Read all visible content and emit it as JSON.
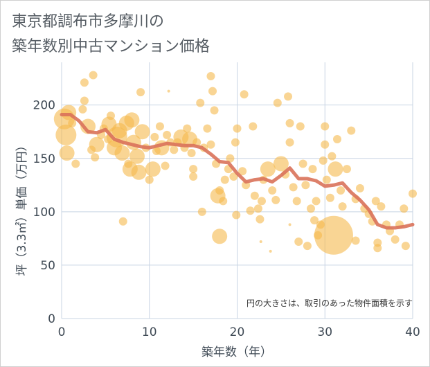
{
  "chart_data": {
    "type": "scatter",
    "title": "東京都調布市多摩川の\n築年数別中古マンション価格",
    "xlabel": "築年数（年）",
    "ylabel": "坪（3.3㎡）単価（万円）",
    "xlim": [
      0,
      40
    ],
    "ylim": [
      0,
      240
    ],
    "xticks": [
      0,
      10,
      20,
      30,
      40
    ],
    "yticks": [
      0,
      50,
      100,
      150,
      200
    ],
    "grid": true,
    "annotation": "円の大きさは、取引のあった物件面積を示す",
    "colors": {
      "bubble": "#f5b94d",
      "line": "#d9725a",
      "grid": "#c8d4e3"
    },
    "bubbles": [
      {
        "x": 0.3,
        "y": 187,
        "s": 3
      },
      {
        "x": 0.5,
        "y": 172,
        "s": 3
      },
      {
        "x": 0.6,
        "y": 155,
        "s": 2
      },
      {
        "x": 0.8,
        "y": 193,
        "s": 2
      },
      {
        "x": 1.2,
        "y": 183,
        "s": 1
      },
      {
        "x": 1.6,
        "y": 145,
        "s": 1
      },
      {
        "x": 2.4,
        "y": 196,
        "s": 1
      },
      {
        "x": 2.6,
        "y": 204,
        "s": 1
      },
      {
        "x": 2.6,
        "y": 221,
        "s": 1
      },
      {
        "x": 3.0,
        "y": 180,
        "s": 2
      },
      {
        "x": 3.4,
        "y": 158,
        "s": 1
      },
      {
        "x": 3.6,
        "y": 228,
        "s": 1
      },
      {
        "x": 3.8,
        "y": 151,
        "s": 1
      },
      {
        "x": 4.0,
        "y": 163,
        "s": 2
      },
      {
        "x": 4.5,
        "y": 172,
        "s": 1
      },
      {
        "x": 4.8,
        "y": 178,
        "s": 1
      },
      {
        "x": 5.3,
        "y": 168,
        "s": 1
      },
      {
        "x": 5.4,
        "y": 182,
        "s": 2
      },
      {
        "x": 5.6,
        "y": 190,
        "s": 1
      },
      {
        "x": 6.0,
        "y": 160,
        "s": 2
      },
      {
        "x": 6.3,
        "y": 170,
        "s": 3
      },
      {
        "x": 6.6,
        "y": 176,
        "s": 2
      },
      {
        "x": 6.9,
        "y": 155,
        "s": 2
      },
      {
        "x": 7.0,
        "y": 91,
        "s": 1
      },
      {
        "x": 7.4,
        "y": 183,
        "s": 2
      },
      {
        "x": 7.6,
        "y": 145,
        "s": 1
      },
      {
        "x": 7.8,
        "y": 140,
        "s": 2
      },
      {
        "x": 8.0,
        "y": 186,
        "s": 2
      },
      {
        "x": 8.2,
        "y": 165,
        "s": 2
      },
      {
        "x": 8.6,
        "y": 152,
        "s": 2
      },
      {
        "x": 8.8,
        "y": 137,
        "s": 2
      },
      {
        "x": 9.0,
        "y": 212,
        "s": 1
      },
      {
        "x": 9.2,
        "y": 175,
        "s": 2
      },
      {
        "x": 9.6,
        "y": 160,
        "s": 1
      },
      {
        "x": 10.0,
        "y": 130,
        "s": 1
      },
      {
        "x": 10.4,
        "y": 140,
        "s": 2
      },
      {
        "x": 10.6,
        "y": 170,
        "s": 1
      },
      {
        "x": 10.8,
        "y": 157,
        "s": 1
      },
      {
        "x": 11.2,
        "y": 180,
        "s": 1
      },
      {
        "x": 11.4,
        "y": 160,
        "s": 2
      },
      {
        "x": 11.8,
        "y": 143,
        "s": 1
      },
      {
        "x": 12.0,
        "y": 172,
        "s": 1
      },
      {
        "x": 12.2,
        "y": 213,
        "s": 0
      },
      {
        "x": 12.4,
        "y": 165,
        "s": 1
      },
      {
        "x": 12.8,
        "y": 158,
        "s": 1
      },
      {
        "x": 13.2,
        "y": 165,
        "s": 1
      },
      {
        "x": 13.6,
        "y": 170,
        "s": 2
      },
      {
        "x": 14.0,
        "y": 160,
        "s": 1
      },
      {
        "x": 14.3,
        "y": 178,
        "s": 1
      },
      {
        "x": 14.6,
        "y": 168,
        "s": 2
      },
      {
        "x": 14.8,
        "y": 155,
        "s": 1
      },
      {
        "x": 15.0,
        "y": 140,
        "s": 1
      },
      {
        "x": 15.0,
        "y": 133,
        "s": 1
      },
      {
        "x": 15.4,
        "y": 165,
        "s": 1
      },
      {
        "x": 15.8,
        "y": 202,
        "s": 1
      },
      {
        "x": 16.0,
        "y": 100,
        "s": 1
      },
      {
        "x": 16.2,
        "y": 160,
        "s": 1
      },
      {
        "x": 16.6,
        "y": 178,
        "s": 1
      },
      {
        "x": 17.0,
        "y": 163,
        "s": 1
      },
      {
        "x": 17.0,
        "y": 227,
        "s": 1
      },
      {
        "x": 17.2,
        "y": 213,
        "s": 1
      },
      {
        "x": 17.4,
        "y": 195,
        "s": 1
      },
      {
        "x": 17.6,
        "y": 145,
        "s": 1
      },
      {
        "x": 17.8,
        "y": 115,
        "s": 2
      },
      {
        "x": 18.0,
        "y": 120,
        "s": 1
      },
      {
        "x": 18.0,
        "y": 77,
        "s": 2
      },
      {
        "x": 18.4,
        "y": 110,
        "s": 1
      },
      {
        "x": 18.6,
        "y": 130,
        "s": 1
      },
      {
        "x": 19.0,
        "y": 140,
        "s": 1
      },
      {
        "x": 19.2,
        "y": 150,
        "s": 1
      },
      {
        "x": 19.6,
        "y": 133,
        "s": 1
      },
      {
        "x": 19.8,
        "y": 165,
        "s": 1
      },
      {
        "x": 19.9,
        "y": 97,
        "s": 1
      },
      {
        "x": 20.0,
        "y": 178,
        "s": 1
      },
      {
        "x": 20.6,
        "y": 138,
        "s": 1
      },
      {
        "x": 20.8,
        "y": 210,
        "s": 1
      },
      {
        "x": 21.0,
        "y": 125,
        "s": 1
      },
      {
        "x": 21.5,
        "y": 101,
        "s": 1
      },
      {
        "x": 21.8,
        "y": 180,
        "s": 1
      },
      {
        "x": 22.0,
        "y": 115,
        "s": 1
      },
      {
        "x": 22.4,
        "y": 103,
        "s": 1
      },
      {
        "x": 22.6,
        "y": 93,
        "s": 1
      },
      {
        "x": 22.7,
        "y": 72,
        "s": 0
      },
      {
        "x": 22.8,
        "y": 110,
        "s": 1
      },
      {
        "x": 23.0,
        "y": 130,
        "s": 1
      },
      {
        "x": 23.5,
        "y": 140,
        "s": 2
      },
      {
        "x": 23.8,
        "y": 63,
        "s": 0
      },
      {
        "x": 24.0,
        "y": 120,
        "s": 1
      },
      {
        "x": 24.4,
        "y": 111,
        "s": 1
      },
      {
        "x": 24.6,
        "y": 202,
        "s": 1
      },
      {
        "x": 25.0,
        "y": 145,
        "s": 2
      },
      {
        "x": 25.5,
        "y": 135,
        "s": 1
      },
      {
        "x": 25.8,
        "y": 208,
        "s": 1
      },
      {
        "x": 26.0,
        "y": 183,
        "s": 1
      },
      {
        "x": 26.0,
        "y": 165,
        "s": 1
      },
      {
        "x": 26.0,
        "y": 88,
        "s": 0
      },
      {
        "x": 26.4,
        "y": 123,
        "s": 1
      },
      {
        "x": 26.8,
        "y": 110,
        "s": 1
      },
      {
        "x": 27.0,
        "y": 72,
        "s": 1
      },
      {
        "x": 27.2,
        "y": 180,
        "s": 1
      },
      {
        "x": 27.5,
        "y": 145,
        "s": 1
      },
      {
        "x": 27.8,
        "y": 125,
        "s": 1
      },
      {
        "x": 28.0,
        "y": 68,
        "s": 1
      },
      {
        "x": 28.4,
        "y": 103,
        "s": 1
      },
      {
        "x": 28.6,
        "y": 140,
        "s": 1
      },
      {
        "x": 28.8,
        "y": 92,
        "s": 1
      },
      {
        "x": 29.0,
        "y": 110,
        "s": 1
      },
      {
        "x": 29.2,
        "y": 78,
        "s": 1
      },
      {
        "x": 29.5,
        "y": 88,
        "s": 1
      },
      {
        "x": 29.8,
        "y": 148,
        "s": 1
      },
      {
        "x": 30.0,
        "y": 180,
        "s": 1
      },
      {
        "x": 30.0,
        "y": 163,
        "s": 1
      },
      {
        "x": 30.2,
        "y": 130,
        "s": 1
      },
      {
        "x": 30.6,
        "y": 113,
        "s": 1
      },
      {
        "x": 30.8,
        "y": 152,
        "s": 1
      },
      {
        "x": 31.0,
        "y": 78,
        "s": 4
      },
      {
        "x": 31.2,
        "y": 140,
        "s": 2
      },
      {
        "x": 31.4,
        "y": 168,
        "s": 1
      },
      {
        "x": 31.8,
        "y": 120,
        "s": 1
      },
      {
        "x": 32.0,
        "y": 105,
        "s": 1
      },
      {
        "x": 32.5,
        "y": 140,
        "s": 1
      },
      {
        "x": 33.0,
        "y": 176,
        "s": 1
      },
      {
        "x": 33.5,
        "y": 112,
        "s": 1
      },
      {
        "x": 33.5,
        "y": 73,
        "s": 1
      },
      {
        "x": 34.0,
        "y": 122,
        "s": 1
      },
      {
        "x": 34.5,
        "y": 103,
        "s": 1
      },
      {
        "x": 35.0,
        "y": 98,
        "s": 1
      },
      {
        "x": 35.4,
        "y": 91,
        "s": 1
      },
      {
        "x": 35.8,
        "y": 110,
        "s": 1
      },
      {
        "x": 36.0,
        "y": 71,
        "s": 1
      },
      {
        "x": 36.0,
        "y": 66,
        "s": 1
      },
      {
        "x": 36.4,
        "y": 105,
        "s": 1
      },
      {
        "x": 37.0,
        "y": 88,
        "s": 1
      },
      {
        "x": 37.4,
        "y": 82,
        "s": 1
      },
      {
        "x": 38.0,
        "y": 74,
        "s": 1
      },
      {
        "x": 38.5,
        "y": 88,
        "s": 1
      },
      {
        "x": 39.0,
        "y": 103,
        "s": 1
      },
      {
        "x": 39.2,
        "y": 68,
        "s": 1
      },
      {
        "x": 40.0,
        "y": 117,
        "s": 1
      }
    ],
    "trend": {
      "x": [
        0,
        1,
        2,
        3,
        4,
        5,
        6,
        7,
        8,
        9,
        10,
        11,
        12,
        13,
        14,
        15,
        16,
        17,
        18,
        19,
        20,
        21,
        22,
        23,
        24,
        25,
        26,
        27,
        28,
        29,
        30,
        31,
        32,
        33,
        34,
        35,
        36,
        37,
        38,
        39,
        40
      ],
      "y": [
        191,
        191,
        185,
        175,
        174,
        177,
        168,
        165,
        163,
        161,
        160,
        162,
        164,
        163,
        162,
        162,
        160,
        154,
        147,
        146,
        136,
        128,
        130,
        131,
        128,
        134,
        141,
        131,
        131,
        129,
        124,
        125,
        127,
        118,
        111,
        102,
        88,
        85,
        85,
        86,
        88
      ]
    }
  }
}
